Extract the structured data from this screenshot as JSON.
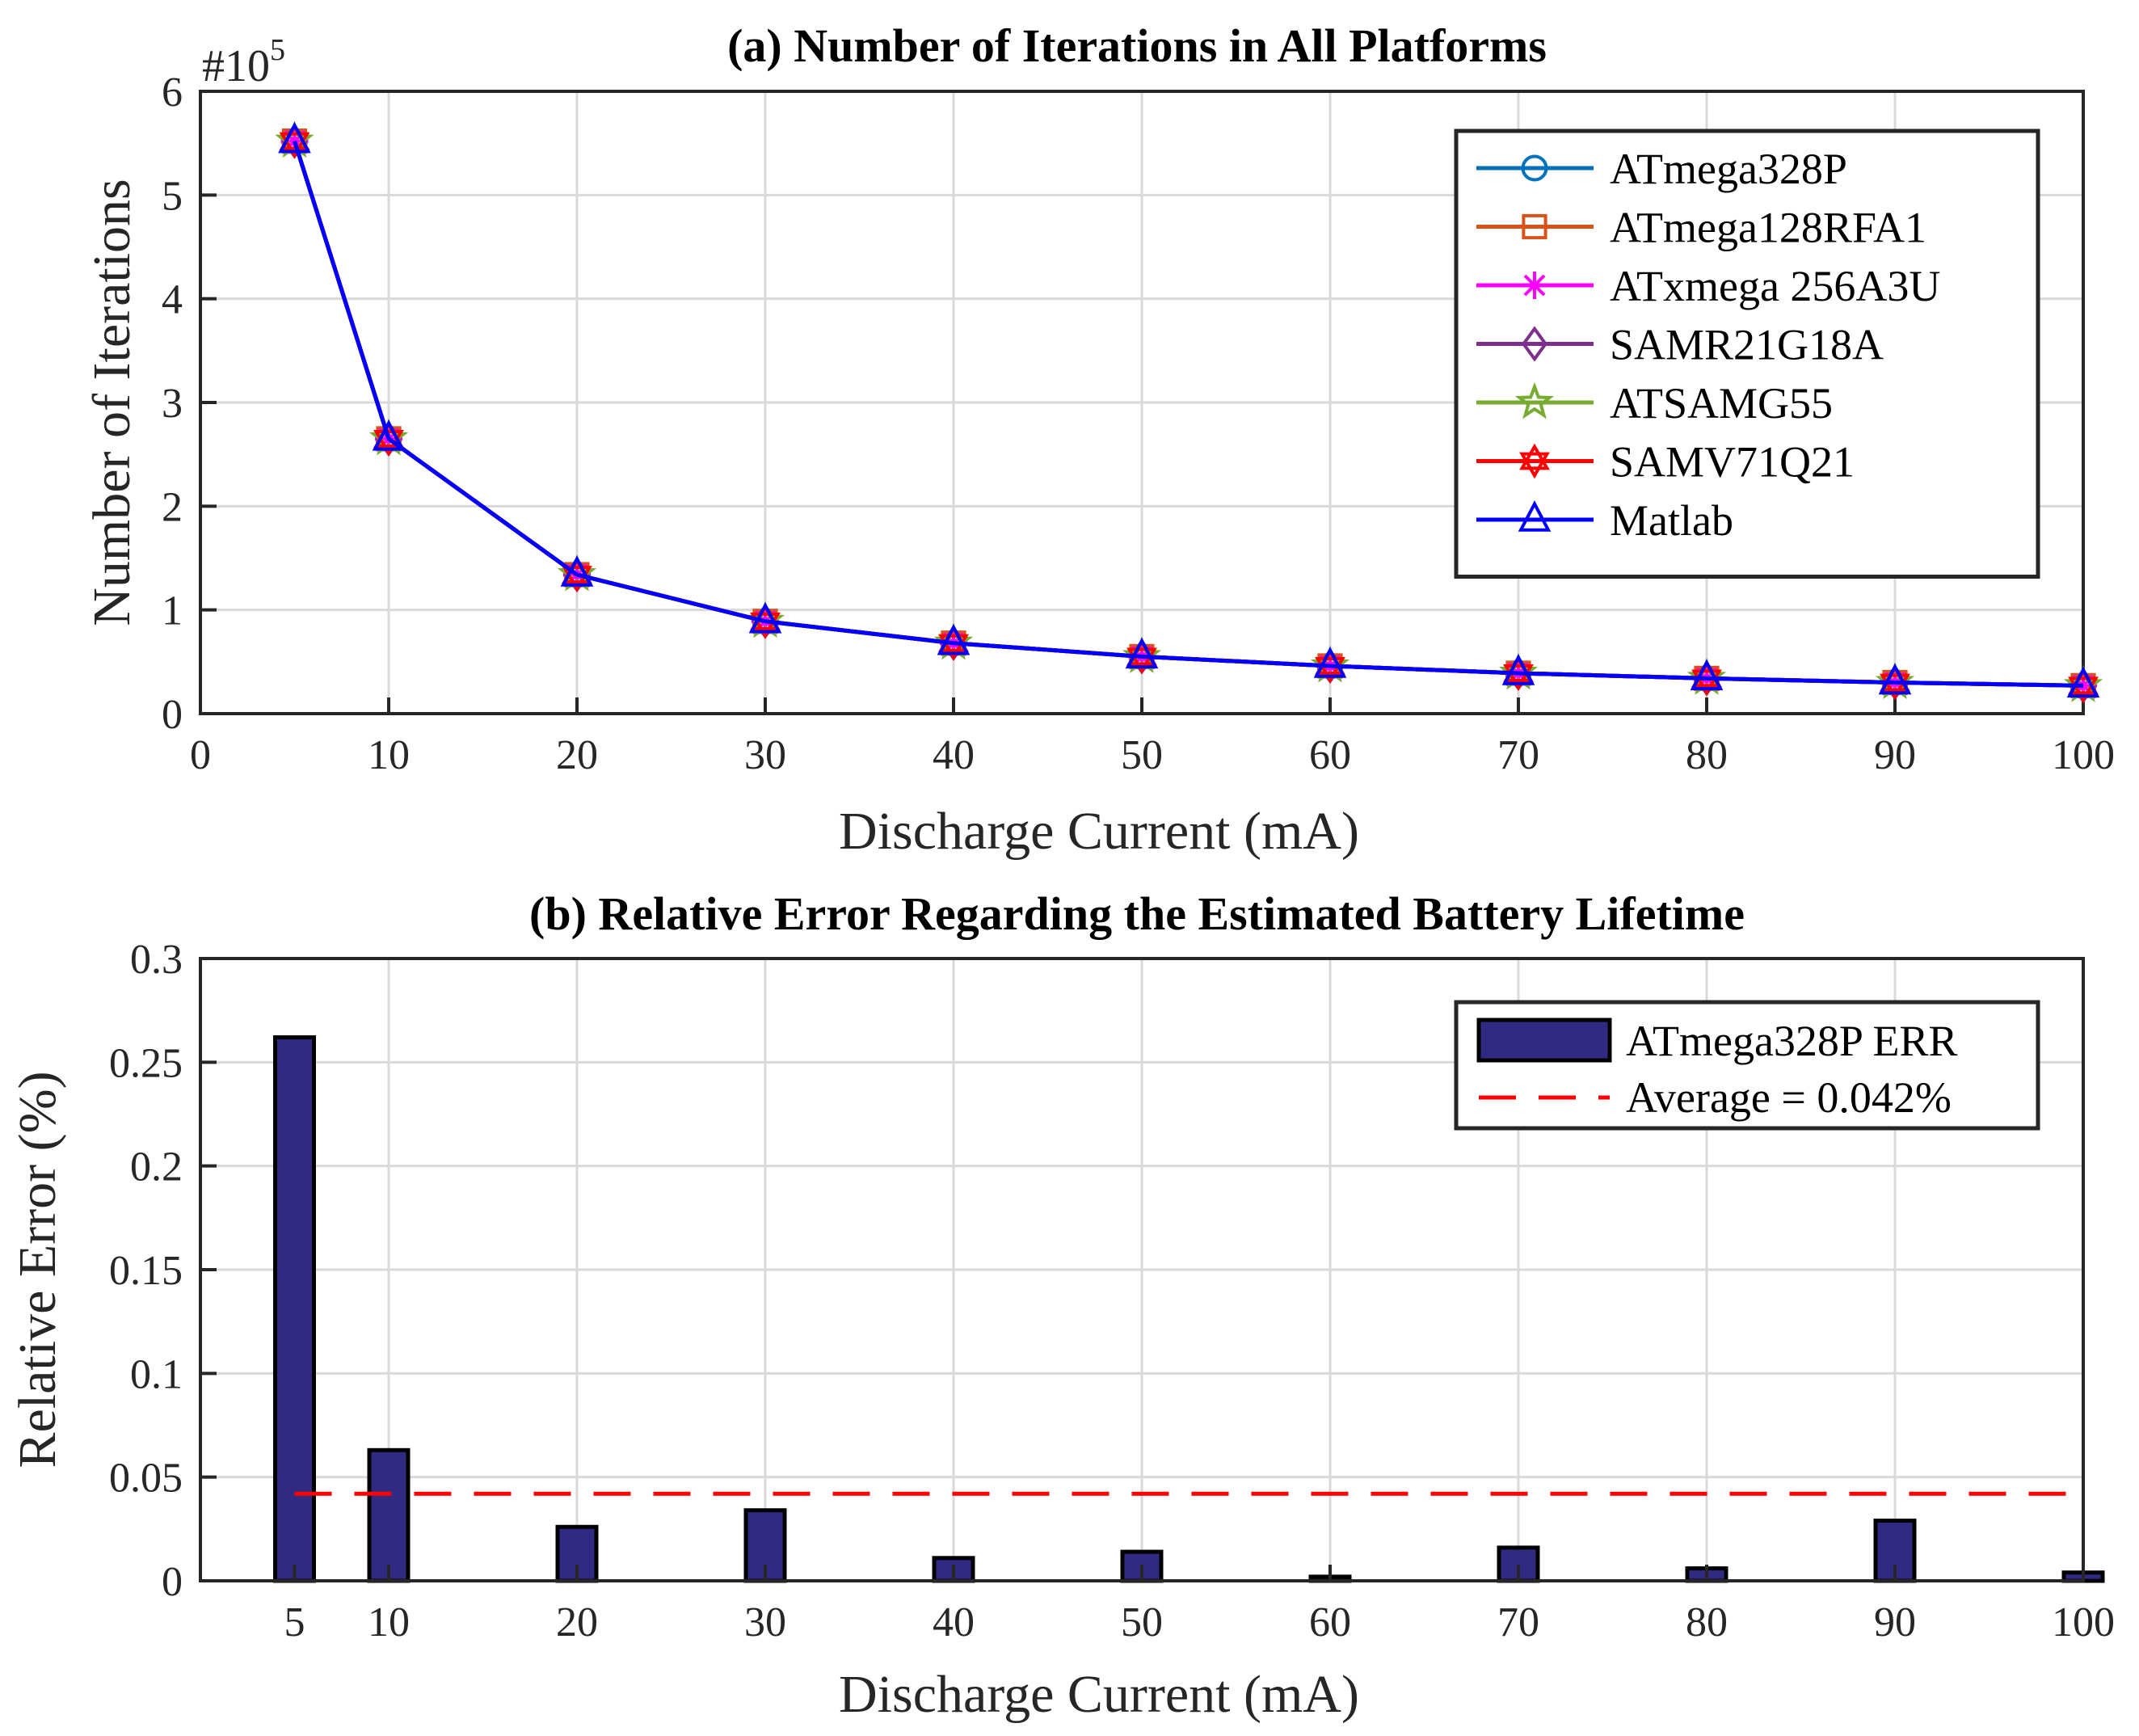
{
  "chart_data": [
    {
      "type": "line",
      "title": "(a) Number of Iterations in All Platforms",
      "xlabel": "Discharge Current (mA)",
      "ylabel": "Number of Iterations",
      "y_exponent_label": "#10",
      "y_exponent_power": "5",
      "xlim": [
        0,
        100
      ],
      "ylim": [
        0,
        6
      ],
      "xticks": [
        "0",
        "10",
        "20",
        "30",
        "40",
        "50",
        "60",
        "70",
        "80",
        "90",
        "100"
      ],
      "yticks": [
        "0",
        "1",
        "2",
        "3",
        "4",
        "5",
        "6"
      ],
      "grid": true,
      "legend_position": "top-right",
      "x": [
        5,
        10,
        20,
        30,
        40,
        50,
        60,
        70,
        80,
        90,
        100
      ],
      "series": [
        {
          "name": "ATmega328P",
          "marker": "circle",
          "color": "#0072BD",
          "values": [
            5.52,
            2.65,
            1.34,
            0.89,
            0.68,
            0.55,
            0.46,
            0.39,
            0.34,
            0.3,
            0.27
          ]
        },
        {
          "name": "ATmega128RFA1",
          "marker": "square",
          "color": "#D95319",
          "values": [
            5.52,
            2.65,
            1.34,
            0.89,
            0.68,
            0.55,
            0.46,
            0.39,
            0.34,
            0.3,
            0.27
          ]
        },
        {
          "name": "ATxmega 256A3U",
          "marker": "asterisk",
          "color": "#FF00FF",
          "values": [
            5.52,
            2.65,
            1.34,
            0.89,
            0.68,
            0.55,
            0.46,
            0.39,
            0.34,
            0.3,
            0.27
          ]
        },
        {
          "name": "SAMR21G18A",
          "marker": "diamond",
          "color": "#7E2F8E",
          "values": [
            5.52,
            2.65,
            1.34,
            0.89,
            0.68,
            0.55,
            0.46,
            0.39,
            0.34,
            0.3,
            0.27
          ]
        },
        {
          "name": "ATSAMG55",
          "marker": "star",
          "color": "#77AC30",
          "values": [
            5.52,
            2.65,
            1.34,
            0.89,
            0.68,
            0.55,
            0.46,
            0.39,
            0.34,
            0.3,
            0.27
          ]
        },
        {
          "name": "SAMV71Q21",
          "marker": "hexagram",
          "color": "#FF0000",
          "values": [
            5.52,
            2.65,
            1.34,
            0.89,
            0.68,
            0.55,
            0.46,
            0.39,
            0.34,
            0.3,
            0.27
          ]
        },
        {
          "name": "Matlab",
          "marker": "triangle",
          "color": "#0000FF",
          "values": [
            5.52,
            2.65,
            1.34,
            0.89,
            0.68,
            0.55,
            0.46,
            0.39,
            0.34,
            0.3,
            0.27
          ]
        }
      ]
    },
    {
      "type": "bar",
      "title": "(b) Relative Error Regarding the Estimated Battery Lifetime",
      "xlabel": "Discharge Current (mA)",
      "ylabel": "Relative Error (%)",
      "xlim": [
        0,
        100
      ],
      "ylim": [
        0,
        0.3
      ],
      "xticks": [
        "5",
        "10",
        "20",
        "30",
        "40",
        "50",
        "60",
        "70",
        "80",
        "90",
        "100"
      ],
      "yticks": [
        "0",
        "0.05",
        "0.1",
        "0.15",
        "0.2",
        "0.25",
        "0.3"
      ],
      "grid": true,
      "legend_position": "top-right",
      "categories": [
        "5",
        "10",
        "20",
        "30",
        "40",
        "50",
        "60",
        "70",
        "80",
        "90",
        "100"
      ],
      "x": [
        5,
        10,
        20,
        30,
        40,
        50,
        60,
        70,
        80,
        90,
        100
      ],
      "series": [
        {
          "name": "ATmega328P ERR",
          "color": "#312A83",
          "values": [
            0.262,
            0.063,
            0.026,
            0.034,
            0.011,
            0.014,
            0.002,
            0.016,
            0.006,
            0.029,
            0.004
          ]
        }
      ],
      "average": {
        "name": "Average = 0.042%",
        "value": 0.042,
        "color": "#FF0000",
        "x_range": [
          5,
          100
        ]
      }
    }
  ]
}
